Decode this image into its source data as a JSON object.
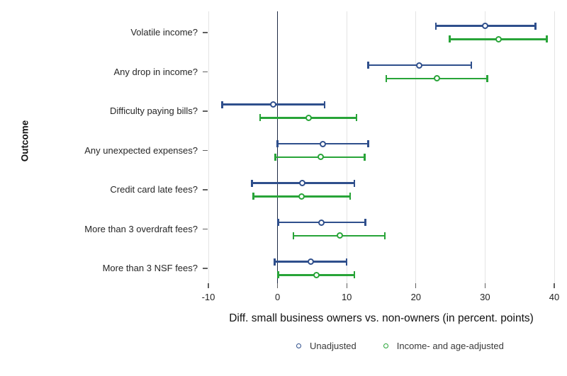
{
  "chart_data": {
    "type": "errorbar",
    "orientation": "horizontal",
    "title": "",
    "xlabel": "Diff. small business owners vs. non-owners (in percent. points)",
    "ylabel": "Outcome",
    "xlim": [
      -10,
      40
    ],
    "xticks": [
      -10,
      0,
      10,
      20,
      30,
      40
    ],
    "grid": "vertical light gridlines at every x tick, dark vertical reference line at 0, no axis frame",
    "legend_position": "bottom",
    "zero_reference_line": 0,
    "categories": [
      "Volatile income?",
      "Any drop in income?",
      "Difficulty paying bills?",
      "Any unexpected expenses?",
      "Credit card late fees?",
      "More than 3 overdraft fees?",
      "More than 3 NSF fees?"
    ],
    "series": [
      {
        "name": "Unadjusted",
        "color": "#2f4f8c",
        "marker": "open-circle",
        "points": [
          {
            "est": 30.0,
            "lo": 22.9,
            "hi": 37.3
          },
          {
            "est": 20.5,
            "lo": 13.1,
            "hi": 28.0
          },
          {
            "est": -0.6,
            "lo": -8.0,
            "hi": 6.8
          },
          {
            "est": 6.5,
            "lo": 0.0,
            "hi": 13.1
          },
          {
            "est": 3.6,
            "lo": -3.7,
            "hi": 11.1
          },
          {
            "est": 6.3,
            "lo": 0.1,
            "hi": 12.7
          },
          {
            "est": 4.8,
            "lo": -0.4,
            "hi": 10.0
          }
        ]
      },
      {
        "name": "Income- and age-adjusted",
        "color": "#28a438",
        "marker": "open-circle",
        "points": [
          {
            "est": 32.0,
            "lo": 24.9,
            "hi": 38.9
          },
          {
            "est": 23.0,
            "lo": 15.7,
            "hi": 30.3
          },
          {
            "est": 4.5,
            "lo": -2.5,
            "hi": 11.4
          },
          {
            "est": 6.2,
            "lo": -0.3,
            "hi": 12.6
          },
          {
            "est": 3.5,
            "lo": -3.5,
            "hi": 10.5
          },
          {
            "est": 9.0,
            "lo": 2.3,
            "hi": 15.5
          },
          {
            "est": 5.6,
            "lo": 0.1,
            "hi": 11.1
          }
        ]
      }
    ]
  },
  "colors": {
    "unadjusted": "#2f4f8c",
    "adjusted": "#28a438",
    "gridline": "#e4e4e4",
    "zero_line": "#1e2a44",
    "background": "#ffffff"
  }
}
